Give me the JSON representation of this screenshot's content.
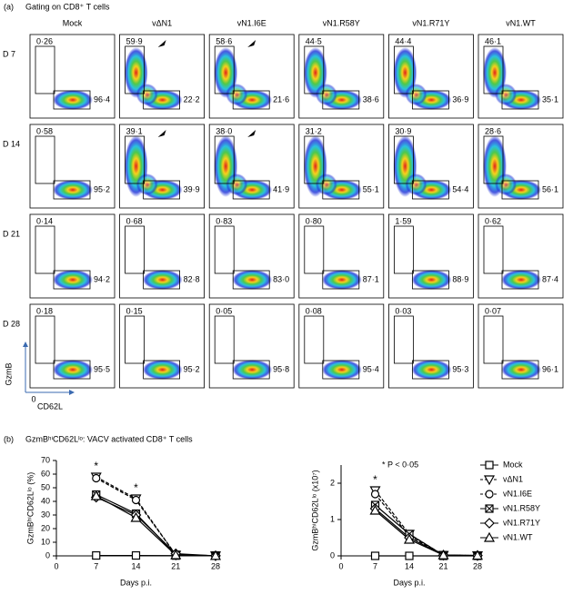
{
  "panel_a": {
    "label": "(a)",
    "title": "Gating on CD8⁺ T cells",
    "columns": [
      "Mock",
      "vΔN1",
      "vN1.I6E",
      "vN1.R58Y",
      "vN1.R71Y",
      "vN1.WT"
    ],
    "rows": [
      {
        "label": "D 7",
        "gates": [
          [
            "0·26",
            "96·4"
          ],
          [
            "59·9",
            "22·2"
          ],
          [
            "58·6",
            "21·6"
          ],
          [
            "44·5",
            "38·6"
          ],
          [
            "44·4",
            "36·9"
          ],
          [
            "46·1",
            "35·1"
          ]
        ]
      },
      {
        "label": "D 14",
        "gates": [
          [
            "0·58",
            "95·2"
          ],
          [
            "39·1",
            "39·9"
          ],
          [
            "38·0",
            "41·9"
          ],
          [
            "31·2",
            "55·1"
          ],
          [
            "30·9",
            "54·4"
          ],
          [
            "28·6",
            "56·1"
          ]
        ]
      },
      {
        "label": "D 21",
        "gates": [
          [
            "0·14",
            "94·2"
          ],
          [
            "0·68",
            "82·8"
          ],
          [
            "0·83",
            "83·0"
          ],
          [
            "0·80",
            "87·1"
          ],
          [
            "1·59",
            "88·9"
          ],
          [
            "0·62",
            "87·4"
          ]
        ]
      },
      {
        "label": "D 28",
        "gates": [
          [
            "0·18",
            "95·5"
          ],
          [
            "0·15",
            "95·2"
          ],
          [
            "0·05",
            "95·8"
          ],
          [
            "0·08",
            "95·4"
          ],
          [
            "0·03",
            "95·3"
          ],
          [
            "0·07",
            "96·1"
          ]
        ]
      }
    ],
    "y_axis": "GzmB",
    "x_axis": "CD62L",
    "origin": "0"
  },
  "panel_b": {
    "label": "(b)",
    "title": "GzmBʰⁱCD62Lˡᵒ: VACV activated CD8⁺ T cells"
  },
  "chart_data": [
    {
      "type": "line",
      "y_label": "GzmBʰⁱCD62Lˡᵒ (%)",
      "x_label": "Days p.i.",
      "x": [
        7,
        14,
        21,
        28
      ],
      "xlim": [
        0,
        28
      ],
      "xticks": [
        0,
        7,
        14,
        21,
        28
      ],
      "ylim": [
        0,
        70
      ],
      "yticks": [
        0,
        10,
        20,
        30,
        40,
        50,
        60,
        70
      ],
      "legend": "right",
      "annotations": [
        {
          "text": "*",
          "x": 7
        },
        {
          "text": "*",
          "x": 14
        }
      ],
      "series": [
        {
          "name": "Mock",
          "color": "#000000",
          "marker": "square",
          "dashed": false,
          "values": [
            0.3,
            0.3,
            0.2,
            0.2
          ]
        },
        {
          "name": "vΔN1",
          "color": "#000000",
          "marker": "triangle-down",
          "dashed": true,
          "values": [
            58,
            42,
            0.7,
            0.2
          ]
        },
        {
          "name": "vN1.I6E",
          "color": "#000000",
          "marker": "circle",
          "dashed": true,
          "values": [
            57,
            41,
            0.8,
            0.1
          ]
        },
        {
          "name": "vN1.R58Y",
          "color": "#000000",
          "marker": "square-x",
          "dashed": false,
          "values": [
            45,
            31,
            0.8,
            0.1
          ]
        },
        {
          "name": "vN1.R71Y",
          "color": "#000000",
          "marker": "diamond",
          "dashed": false,
          "values": [
            43,
            30,
            1.6,
            0.05
          ]
        },
        {
          "name": "vN1.WT",
          "color": "#000000",
          "marker": "triangle-up",
          "dashed": false,
          "values": [
            44,
            28,
            0.6,
            0.1
          ]
        }
      ]
    },
    {
      "type": "line",
      "y_label": "GzmBʰⁱCD62Lˡᵒ (x10⁷)",
      "x_label": "Days p.i.",
      "note": "* P < 0·05",
      "x": [
        7,
        14,
        21,
        28
      ],
      "xlim": [
        0,
        28
      ],
      "xticks": [
        0,
        7,
        14,
        21,
        28
      ],
      "ylim": [
        0,
        2.5
      ],
      "yticks": [
        0,
        1,
        2
      ],
      "annotations": [
        {
          "text": "*",
          "x": 7
        }
      ],
      "series": [
        {
          "color": "#000000",
          "marker": "square",
          "dashed": false,
          "values": [
            0,
            0,
            0,
            0
          ]
        },
        {
          "color": "#000000",
          "marker": "triangle-down",
          "dashed": true,
          "values": [
            1.8,
            0.6,
            0.02,
            0.01
          ]
        },
        {
          "color": "#000000",
          "marker": "circle",
          "dashed": true,
          "values": [
            1.7,
            0.55,
            0.02,
            0.01
          ]
        },
        {
          "color": "#000000",
          "marker": "square-x",
          "dashed": false,
          "values": [
            1.4,
            0.6,
            0.02,
            0.01
          ]
        },
        {
          "color": "#000000",
          "marker": "diamond",
          "dashed": false,
          "values": [
            1.3,
            0.5,
            0.02,
            0.01
          ]
        },
        {
          "color": "#000000",
          "marker": "triangle-up",
          "dashed": false,
          "values": [
            1.25,
            0.45,
            0.02,
            0.01
          ]
        }
      ]
    }
  ]
}
